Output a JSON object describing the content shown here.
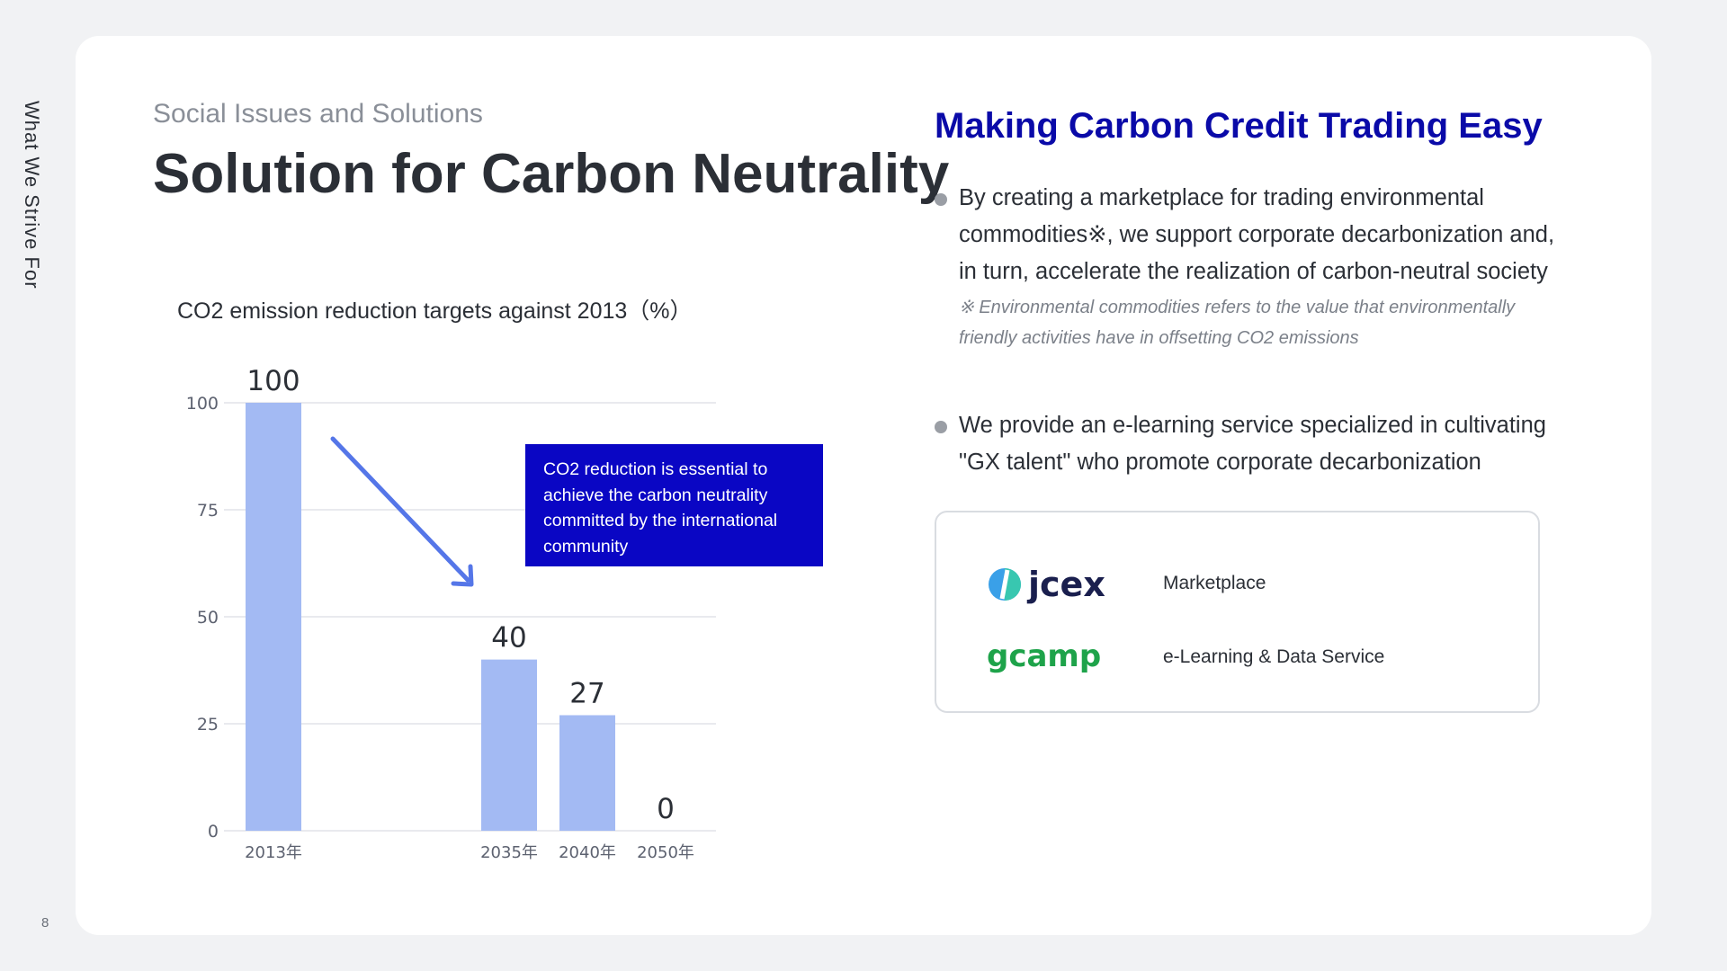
{
  "side_label": "What We Strive For",
  "page_number": "8",
  "eyebrow": "Social Issues and Solutions",
  "title": "Solution for Carbon Neutrality",
  "chart_caption": "CO2 emission reduction targets against 2013（%）",
  "callout": "CO2 reduction is essential to achieve the carbon neutrality committed by the international community",
  "right_heading": "Making Carbon Credit Trading Easy",
  "bullets": [
    {
      "text": "By creating a marketplace for trading environmental commodities※, we support corporate decarbonization and, in turn, accelerate the realization of carbon-neutral society",
      "note": "※ Environmental commodities refers to the value that environmentally friendly activities have in offsetting CO2 emissions"
    },
    {
      "text": "We provide an e-learning service specialized in cultivating \"GX talent\" who promote corporate decarbonization"
    }
  ],
  "services": [
    {
      "logo_text": "JCeX",
      "logo_color": "#1a1f4e",
      "label": "Marketplace",
      "icon": "jcex-logo"
    },
    {
      "logo_text": "GCamp",
      "logo_color": "#1ea34a",
      "label": "e-Learning & Data Service",
      "icon": "gcamp-logo"
    }
  ],
  "colors": {
    "bar": "#a3baf3",
    "arrow": "#5576e8",
    "callout_bg": "#0a06c4",
    "heading": "#0a0aa8"
  },
  "chart_data": {
    "type": "bar",
    "categories": [
      "2013年",
      "2035年",
      "2040年",
      "2050年"
    ],
    "values": [
      100,
      40,
      27,
      0
    ],
    "data_labels": [
      "100",
      "40",
      "27",
      "0"
    ],
    "yticks": [
      "0",
      "25",
      "50",
      "75",
      "100"
    ],
    "ylim": [
      0,
      100
    ],
    "title": "CO2 emission reduction targets against 2013（%）",
    "xlabel": "",
    "ylabel": "",
    "grid": true,
    "annotation_arrow": "downward from 2013 toward 2035"
  }
}
